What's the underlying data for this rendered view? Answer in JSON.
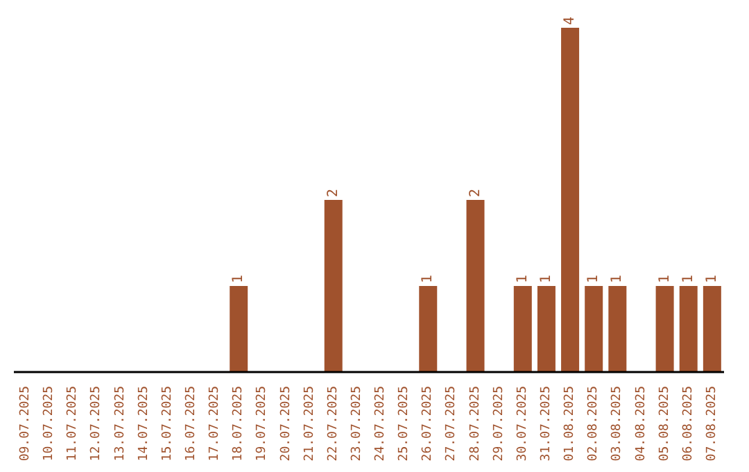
{
  "chart_data": {
    "type": "bar",
    "categories": [
      "09.07.2025",
      "10.07.2025",
      "11.07.2025",
      "12.07.2025",
      "13.07.2025",
      "14.07.2025",
      "15.07.2025",
      "16.07.2025",
      "17.07.2025",
      "18.07.2025",
      "19.07.2025",
      "20.07.2025",
      "21.07.2025",
      "22.07.2025",
      "23.07.2025",
      "24.07.2025",
      "25.07.2025",
      "26.07.2025",
      "27.07.2025",
      "28.07.2025",
      "29.07.2025",
      "30.07.2025",
      "31.07.2025",
      "01.08.2025",
      "02.08.2025",
      "03.08.2025",
      "04.08.2025",
      "05.08.2025",
      "06.08.2025",
      "07.08.2025"
    ],
    "values": [
      0,
      0,
      0,
      0,
      0,
      0,
      0,
      0,
      0,
      1,
      0,
      0,
      0,
      2,
      0,
      0,
      0,
      1,
      0,
      2,
      0,
      1,
      1,
      4,
      1,
      1,
      0,
      1,
      1,
      1
    ],
    "value_labels": [
      null,
      null,
      null,
      null,
      null,
      null,
      null,
      null,
      null,
      "1",
      null,
      null,
      null,
      "2",
      null,
      null,
      null,
      "1",
      null,
      "2",
      null,
      "1",
      "1",
      "4",
      "1",
      "1",
      null,
      "1",
      "1",
      "1"
    ],
    "color": "#a0522d",
    "grid": false,
    "legend": false
  }
}
